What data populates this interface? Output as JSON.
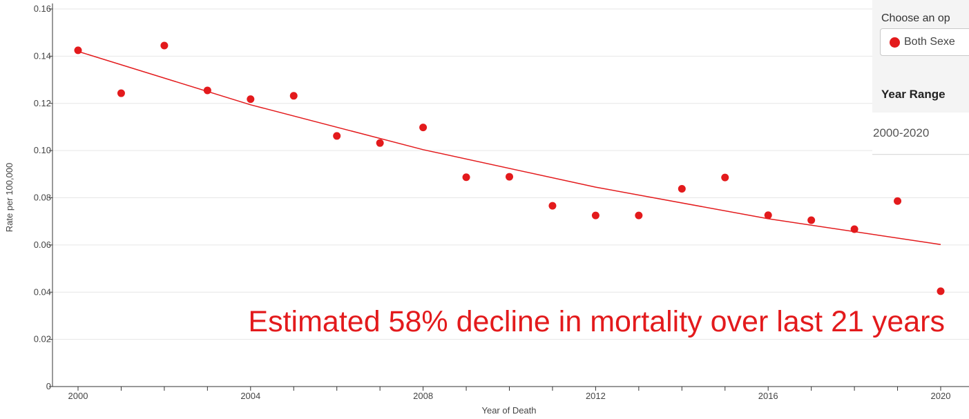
{
  "chart_data": {
    "type": "scatter",
    "title": "",
    "xlabel": "Year of Death",
    "ylabel": "Rate per 100,000",
    "xlim": [
      2000,
      2020
    ],
    "ylim": [
      0,
      0.16
    ],
    "x_ticks": [
      2000,
      2004,
      2008,
      2012,
      2016,
      2020
    ],
    "y_ticks": [
      0,
      0.02,
      0.04,
      0.06,
      0.08,
      0.1,
      0.12,
      0.14,
      0.16
    ],
    "y_tick_labels": [
      "0",
      "0.02",
      "0.04",
      "0.06",
      "0.08",
      "0.10",
      "0.12",
      "0.14",
      "0.16"
    ],
    "grid": true,
    "point_color": "#e31a1c",
    "series": [
      {
        "x": [
          2000,
          2001,
          2002,
          2003,
          2004,
          2005,
          2006,
          2007,
          2008,
          2009,
          2010,
          2011,
          2012,
          2013,
          2014,
          2015,
          2016,
          2017,
          2018,
          2019,
          2020
        ],
        "values": [
          0.1425,
          0.1243,
          0.1445,
          0.1255,
          0.1218,
          0.1232,
          0.1062,
          0.1032,
          0.1098,
          0.0887,
          0.0889,
          0.0766,
          0.0725,
          0.0725,
          0.0838,
          0.0886,
          0.0726,
          0.0705,
          0.0667,
          0.0786,
          0.0404
        ]
      }
    ],
    "trend_line": {
      "color": "#e31a1c",
      "x": [
        2000,
        2004,
        2008,
        2012,
        2016,
        2020
      ],
      "values": [
        0.142,
        0.1194,
        0.1004,
        0.0845,
        0.0711,
        0.0602
      ]
    },
    "annotation": "Estimated 58% decline in mortality over last 21 years"
  },
  "controls": {
    "prompt": "Choose an op",
    "selected_option": "Both Sexe",
    "year_range_header": "Year Range",
    "year_range_value": "2000-2020"
  }
}
